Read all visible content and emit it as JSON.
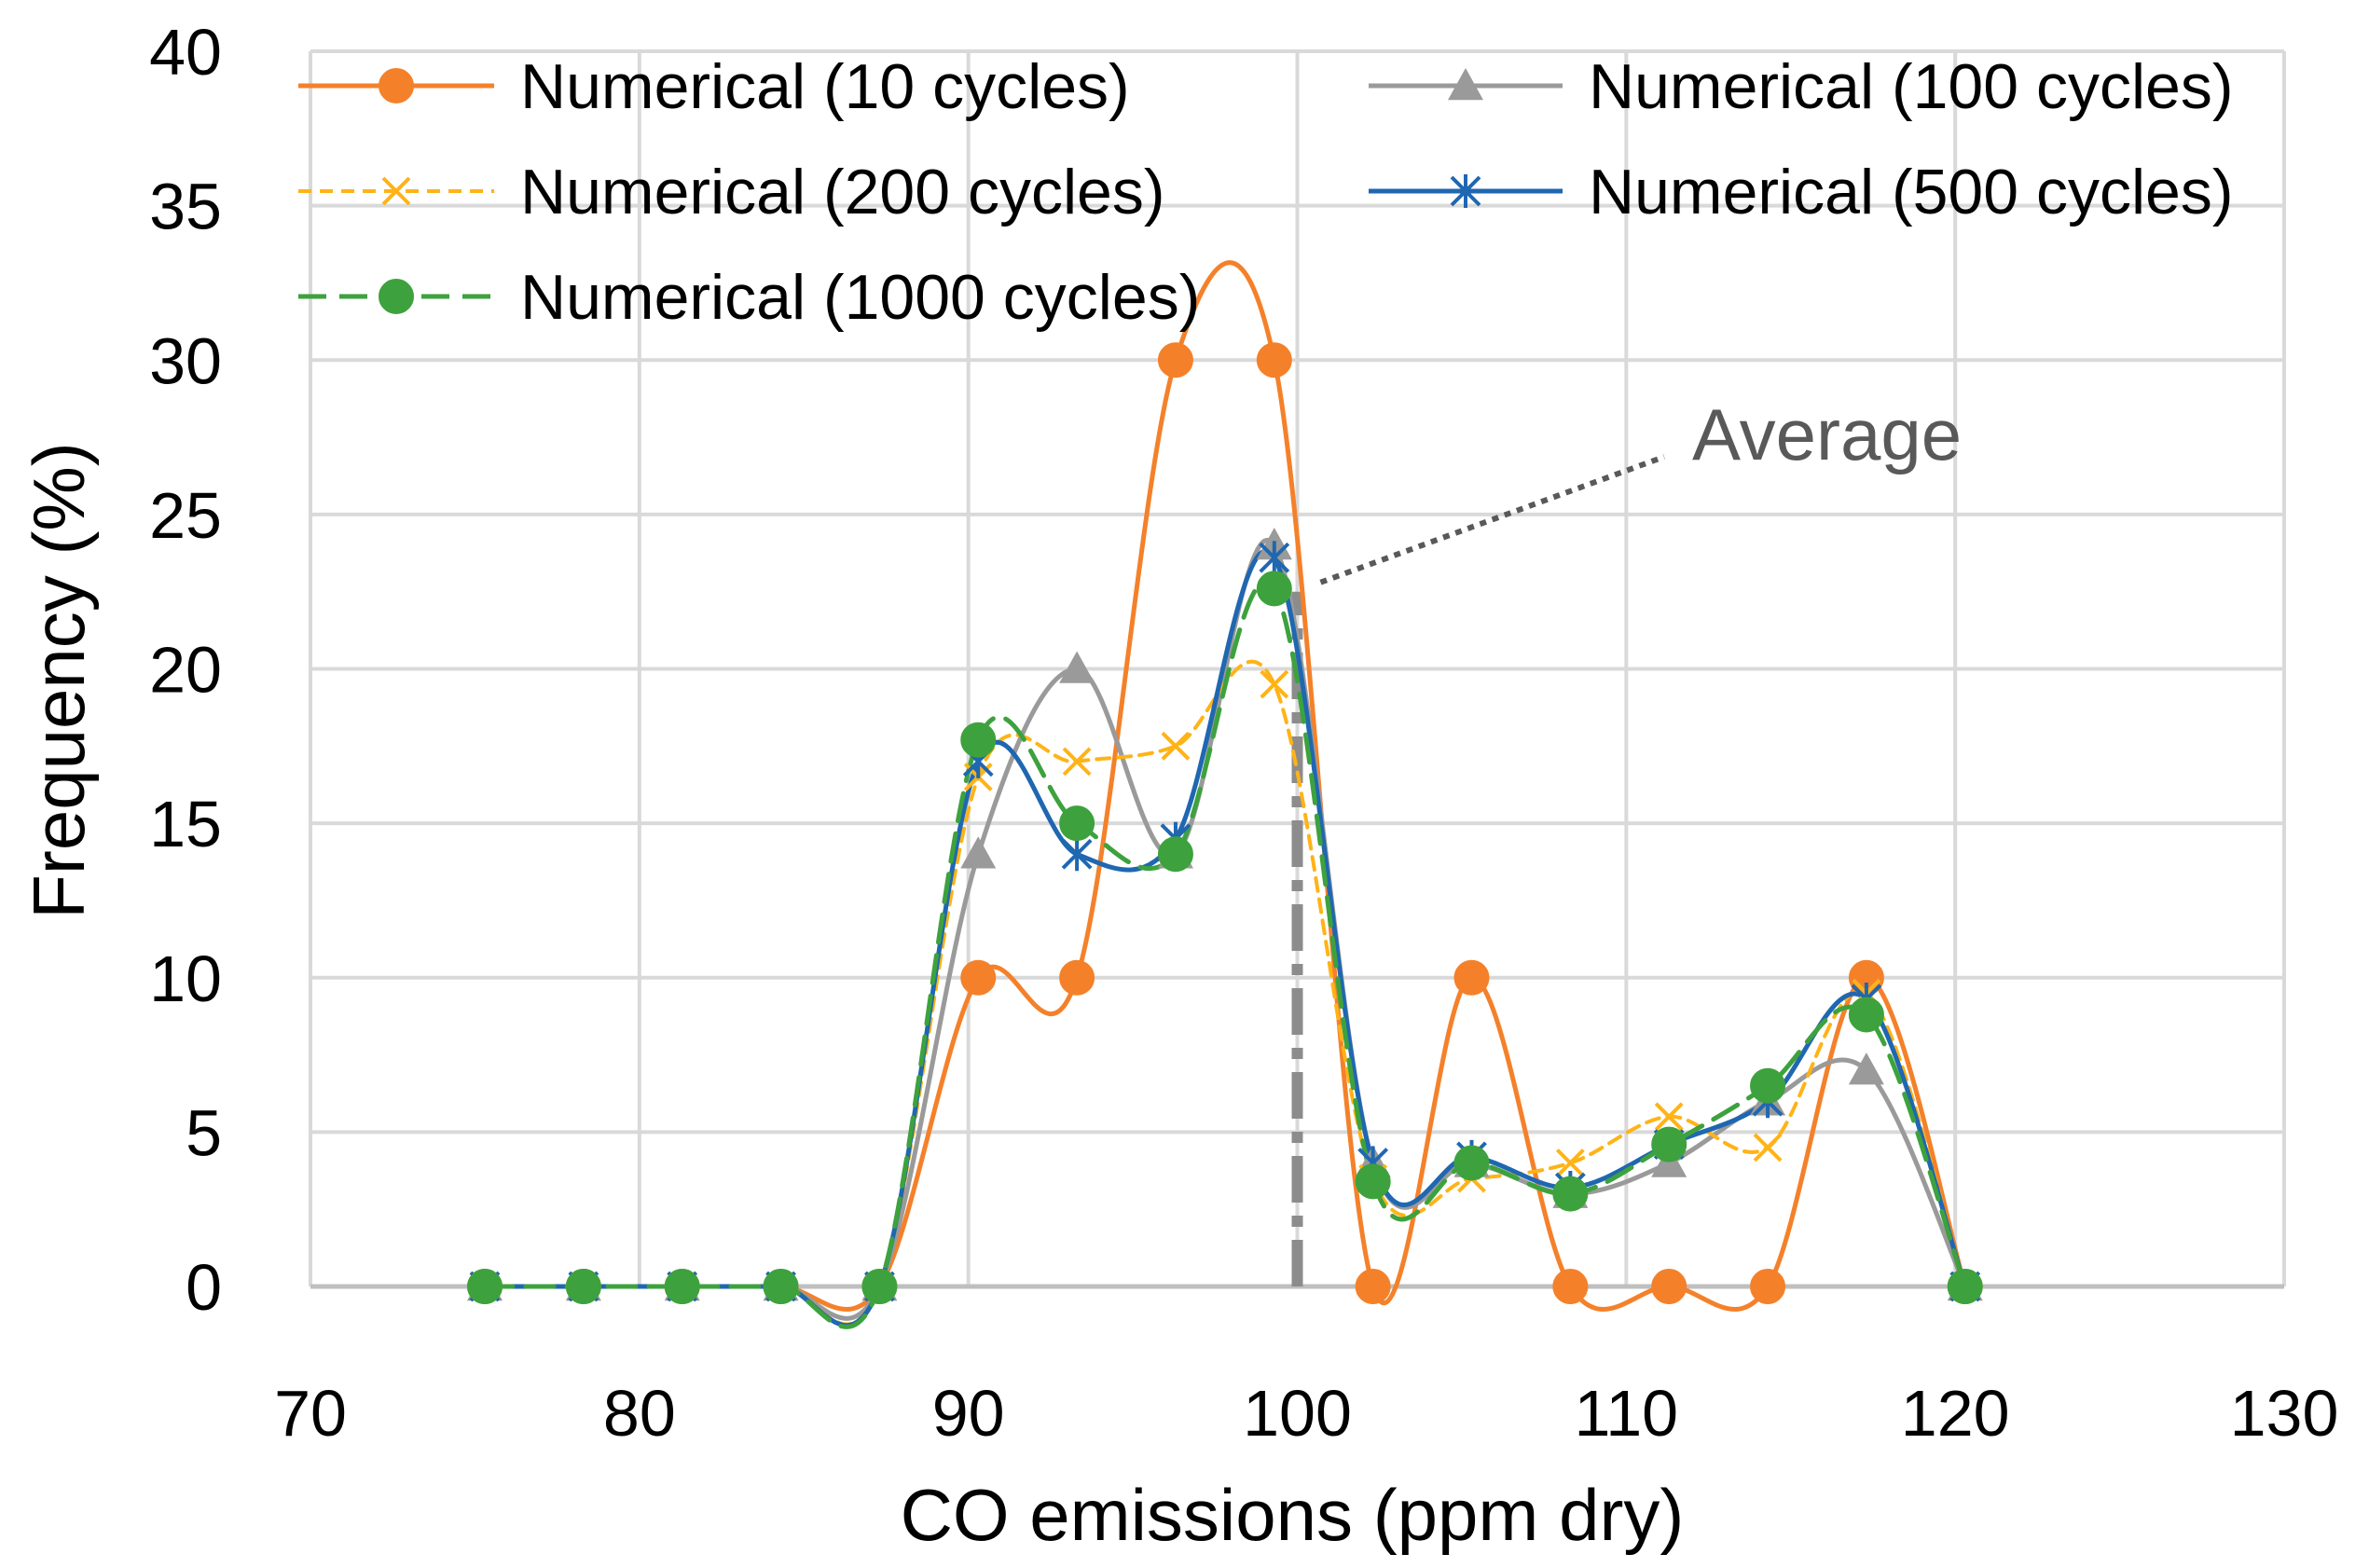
{
  "chart_data": {
    "type": "line",
    "title": "",
    "xlabel": "CO emissions (ppm dry)",
    "ylabel": "Frequency (%)",
    "xlim": [
      70,
      130
    ],
    "ylim": [
      0,
      40
    ],
    "xticks": [
      70,
      80,
      90,
      100,
      110,
      120,
      130
    ],
    "yticks": [
      0,
      5,
      10,
      15,
      20,
      25,
      30,
      35,
      40
    ],
    "xtick_labels": [
      "70",
      "80",
      "90",
      "100",
      "110",
      "120",
      "130"
    ],
    "ytick_labels": [
      "0",
      "5",
      "10",
      "15",
      "20",
      "25",
      "30",
      "35",
      "40"
    ],
    "grid": true,
    "legend_position": "top",
    "x": [
      75.3,
      78.3,
      81.3,
      84.3,
      87.3,
      90.3,
      93.3,
      96.3,
      99.3,
      102.3,
      105.3,
      108.3,
      111.3,
      114.3,
      117.3,
      120.3
    ],
    "series": [
      {
        "name": "Numerical (10 cycles)",
        "color": "#F4812A",
        "marker": "circle",
        "dash": "solid",
        "values": [
          0,
          0,
          0,
          0,
          0,
          10,
          10,
          30,
          30,
          0,
          10,
          0,
          0,
          0,
          10,
          0
        ]
      },
      {
        "name": "Numerical (100 cycles)",
        "color": "#9A9A9A",
        "marker": "triangle",
        "dash": "solid",
        "values": [
          0,
          0,
          0,
          0,
          0,
          14,
          20,
          14,
          24,
          4,
          4,
          3,
          4,
          6,
          7,
          0
        ]
      },
      {
        "name": "Numerical (200 cycles)",
        "color": "#FFB317",
        "marker": "x",
        "dash": "short-dash",
        "values": [
          0,
          0,
          0,
          0,
          0,
          16.5,
          17,
          17.5,
          19.5,
          3.5,
          3.5,
          4,
          5.5,
          4.5,
          9.5,
          0
        ]
      },
      {
        "name": "Numerical (500 cycles)",
        "color": "#1F67B1",
        "marker": "asterisk",
        "dash": "solid",
        "values": [
          0,
          0,
          0,
          0,
          0,
          17,
          14,
          14.5,
          23.6,
          4,
          4.2,
          3.2,
          4.6,
          6,
          9.3,
          0
        ]
      },
      {
        "name": "Numerical (1000 cycles)",
        "color": "#3DA23D",
        "marker": "circle",
        "dash": "long-dash",
        "values": [
          0,
          0,
          0,
          0,
          0,
          17.7,
          15,
          14,
          22.6,
          3.4,
          4,
          3,
          4.6,
          6.5,
          8.8,
          0
        ]
      }
    ],
    "average_line": {
      "x": 100,
      "y_from": 0,
      "y_to": 22.5,
      "color": "#8C8C8C"
    },
    "annotations": [
      {
        "text": "Average",
        "points_to_x": 100,
        "points_to_y": 22.5,
        "color": "#595959"
      }
    ]
  }
}
